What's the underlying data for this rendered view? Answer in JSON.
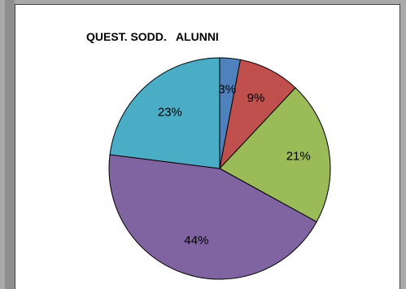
{
  "chart_data": {
    "type": "pie",
    "title": "QUEST. SODD.   ALUNNI",
    "slices": [
      {
        "value": 3,
        "label": "3%",
        "color": "#4f81bd"
      },
      {
        "value": 9,
        "label": "9%",
        "color": "#c0504d"
      },
      {
        "value": 21,
        "label": "21%",
        "color": "#9bbb59"
      },
      {
        "value": 44,
        "label": "44%",
        "color": "#8064a2"
      },
      {
        "value": 23,
        "label": "23%",
        "color": "#4bacc6"
      }
    ]
  }
}
